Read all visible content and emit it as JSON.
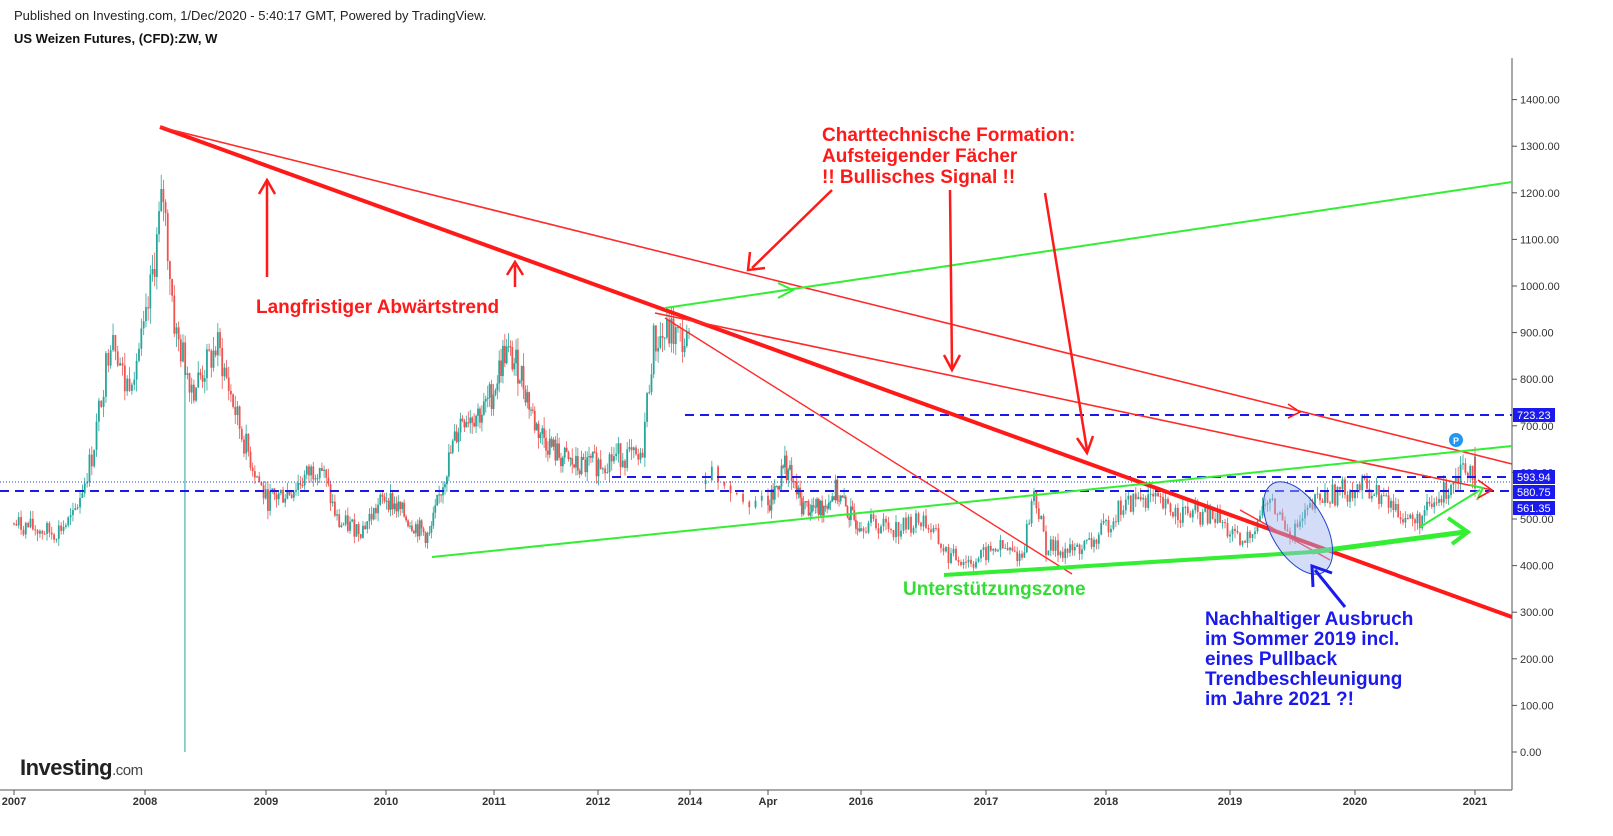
{
  "header": {
    "published": "Published on Investing.com, 1/Dec/2020 - 5:40:17 GMT, Powered by TradingView.",
    "title": "US Weizen Futures, (CFD):ZW, W"
  },
  "logo": {
    "brand": "Investing",
    "suffix": ".com"
  },
  "colors": {
    "up": "#26a69a",
    "down": "#ef5350",
    "downtrend": "#ff1a1a",
    "support": "#33ee33",
    "level": "#1a1aee",
    "blue_text": "#1a1aee",
    "label_text": "#ffffff"
  },
  "chart_data": {
    "type": "candlestick",
    "symbol": "ZW",
    "timeframe": "W",
    "x_ticks": [
      {
        "date": "2007-01",
        "label": "2007"
      },
      {
        "date": "2008-01",
        "label": "2008"
      },
      {
        "date": "2009-01",
        "label": "2009"
      },
      {
        "date": "2010-01",
        "label": "2010"
      },
      {
        "date": "2011-01",
        "label": "2011"
      },
      {
        "date": "2012-01",
        "label": "2012"
      },
      {
        "date": "2014-01",
        "label": "2014"
      },
      {
        "date": "2014-04",
        "label": "Apr"
      },
      {
        "date": "2016-01",
        "label": "2016"
      },
      {
        "date": "2017-01",
        "label": "2017"
      },
      {
        "date": "2018-01",
        "label": "2018"
      },
      {
        "date": "2019-01",
        "label": "2019"
      },
      {
        "date": "2020-01",
        "label": "2020"
      },
      {
        "date": "2021-01",
        "label": "2021"
      }
    ],
    "y_ticks": [
      "1400.00",
      "1300.00",
      "1200.00",
      "1100.00",
      "1000.00",
      "900.00",
      "800.00",
      "700.00",
      "600.00",
      "500.00",
      "400.00",
      "300.00",
      "200.00",
      "100.00",
      "0.00"
    ],
    "ylim": [
      -30,
      1480
    ],
    "price_path": [
      {
        "t": 0.0,
        "p": 490
      },
      {
        "t": 0.3,
        "p": 470
      },
      {
        "t": 0.45,
        "p": 500
      },
      {
        "t": 0.6,
        "p": 640
      },
      {
        "t": 0.75,
        "p": 920
      },
      {
        "t": 0.85,
        "p": 780
      },
      {
        "t": 1.0,
        "p": 900
      },
      {
        "t": 1.15,
        "p": 1200
      },
      {
        "t": 1.25,
        "p": 900
      },
      {
        "t": 1.4,
        "p": 780
      },
      {
        "t": 1.6,
        "p": 870
      },
      {
        "t": 1.8,
        "p": 680
      },
      {
        "t": 2.0,
        "p": 540
      },
      {
        "t": 2.2,
        "p": 560
      },
      {
        "t": 2.45,
        "p": 620
      },
      {
        "t": 2.6,
        "p": 490
      },
      {
        "t": 2.8,
        "p": 480
      },
      {
        "t": 3.0,
        "p": 550
      },
      {
        "t": 3.2,
        "p": 500
      },
      {
        "t": 3.4,
        "p": 460
      },
      {
        "t": 3.55,
        "p": 600
      },
      {
        "t": 3.7,
        "p": 720
      },
      {
        "t": 3.9,
        "p": 730
      },
      {
        "t": 4.0,
        "p": 780
      },
      {
        "t": 4.1,
        "p": 860
      },
      {
        "t": 4.25,
        "p": 820
      },
      {
        "t": 4.4,
        "p": 700
      },
      {
        "t": 4.6,
        "p": 640
      },
      {
        "t": 4.8,
        "p": 610
      },
      {
        "t": 5.0,
        "p": 620
      },
      {
        "t": 5.2,
        "p": 640
      },
      {
        "t": 5.35,
        "p": 620
      },
      {
        "t": 5.45,
        "p": 880
      },
      {
        "t": 5.6,
        "p": 900
      },
      {
        "t": 5.75,
        "p": 870
      }
    ],
    "price_path_2": [
      {
        "t": 5.8,
        "p": 610
      },
      {
        "t": 6.0,
        "p": 520
      },
      {
        "t": 6.2,
        "p": 620
      },
      {
        "t": 6.4,
        "p": 530
      },
      {
        "t": 6.6,
        "p": 520
      },
      {
        "t": 6.8,
        "p": 560
      },
      {
        "t": 7.0,
        "p": 500
      },
      {
        "t": 7.2,
        "p": 490
      },
      {
        "t": 7.4,
        "p": 480
      },
      {
        "t": 7.6,
        "p": 500
      },
      {
        "t": 7.8,
        "p": 420
      },
      {
        "t": 8.0,
        "p": 410
      },
      {
        "t": 8.2,
        "p": 440
      },
      {
        "t": 8.4,
        "p": 420
      },
      {
        "t": 8.5,
        "p": 560
      },
      {
        "t": 8.6,
        "p": 440
      },
      {
        "t": 8.8,
        "p": 430
      },
      {
        "t": 9.0,
        "p": 450
      },
      {
        "t": 9.2,
        "p": 520
      },
      {
        "t": 9.4,
        "p": 550
      },
      {
        "t": 9.6,
        "p": 520
      },
      {
        "t": 9.8,
        "p": 510
      },
      {
        "t": 10.0,
        "p": 500
      },
      {
        "t": 10.2,
        "p": 440
      },
      {
        "t": 10.4,
        "p": 540
      },
      {
        "t": 10.6,
        "p": 470
      },
      {
        "t": 10.8,
        "p": 540
      },
      {
        "t": 11.0,
        "p": 560
      },
      {
        "t": 11.2,
        "p": 570
      },
      {
        "t": 11.4,
        "p": 530
      },
      {
        "t": 11.6,
        "p": 490
      },
      {
        "t": 11.8,
        "p": 540
      },
      {
        "t": 12.0,
        "p": 620
      },
      {
        "t": 12.15,
        "p": 600
      },
      {
        "t": 12.25,
        "p": 590
      }
    ],
    "price_labels": [
      {
        "value": 723.23,
        "label": "723.23"
      },
      {
        "value": 593.94,
        "label": "593.94"
      },
      {
        "value": 580.75,
        "label": "580.75"
      },
      {
        "value": 561.35,
        "label": "561.35"
      }
    ],
    "annotations": {
      "downtrend": "Langfristiger Abwärtstrend",
      "formation_1": "Charttechnische Formation:",
      "formation_2": "Aufsteigender Fächer",
      "formation_3": "!! Bullisches Signal !!",
      "support": "Unterstützungszone",
      "breakout_1": "Nachhaltiger Ausbruch",
      "breakout_2": "im Sommer 2019 incl.",
      "breakout_3": "eines Pullback",
      "breakout_4": "Trendbeschleunigung",
      "breakout_5": "im Jahre 2021 ?!",
      "marker": "P"
    }
  }
}
